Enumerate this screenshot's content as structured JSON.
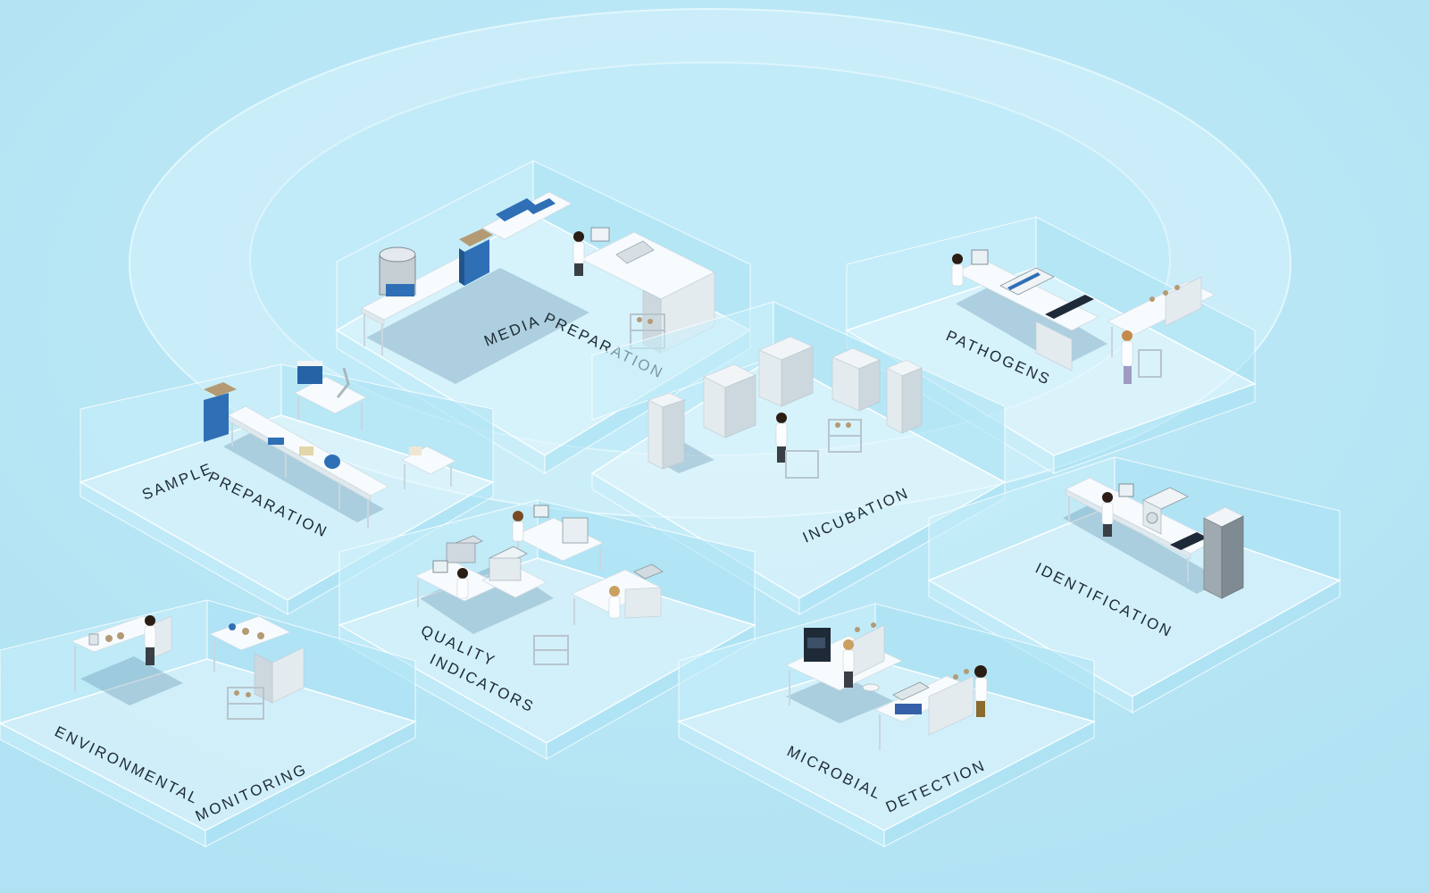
{
  "zones": [
    {
      "id": "media-preparation",
      "label_parts": [
        "MEDIA",
        "PREPARATION"
      ]
    },
    {
      "id": "pathogens",
      "label_parts": [
        "PATHOGENS"
      ]
    },
    {
      "id": "sample-preparation",
      "label_parts": [
        "SAMPLE",
        "PREPARATION"
      ]
    },
    {
      "id": "incubation",
      "label_parts": [
        "INCUBATION"
      ]
    },
    {
      "id": "identification",
      "label_parts": [
        "IDENTIFICATION"
      ]
    },
    {
      "id": "quality-indicators",
      "label_parts": [
        "QUALITY",
        "INDICATORS"
      ]
    },
    {
      "id": "environmental-monitoring",
      "label_parts": [
        "ENVIRONMENTAL",
        "MONITORING"
      ]
    },
    {
      "id": "microbial-detection",
      "label_parts": [
        "MICROBIAL",
        "DETECTION"
      ]
    }
  ],
  "colors": {
    "background": "#b7e6f5",
    "ring": "#d4f0fa",
    "label": "#1d2a33",
    "equipment_blue": "#2f6fb5"
  },
  "icons": [
    "lab-bench-icon",
    "incubator-cabinet-icon",
    "lab-technician-icon",
    "microscope-icon",
    "monitor-icon"
  ]
}
